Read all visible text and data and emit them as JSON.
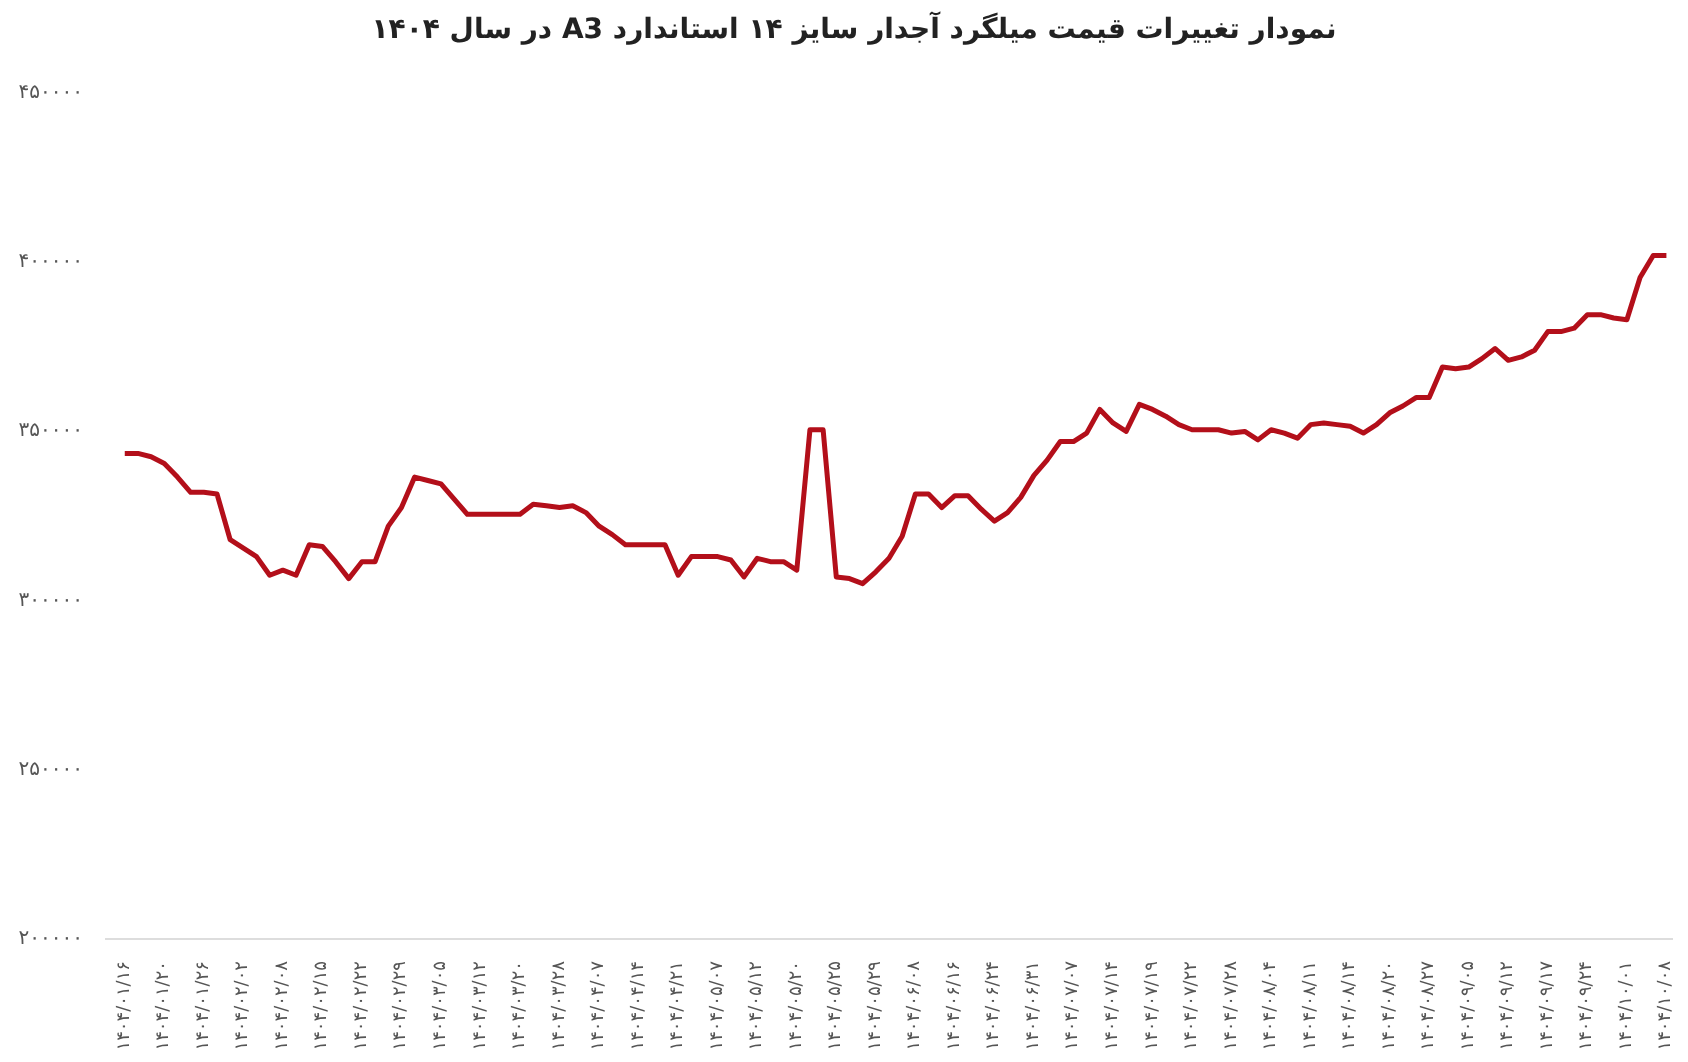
{
  "chart_data": {
    "type": "line",
    "title": "نمودار تغییرات قیمت میلگرد آجدار سایز ۱۴ استاندارد A3 در سال ۱۴۰۴",
    "categories": [
      "۱۴۰۴/۰۱/۱۶",
      null,
      null,
      "۱۴۰۴/۰۱/۲۰",
      null,
      null,
      "۱۴۰۴/۰۱/۲۶",
      null,
      null,
      "۱۴۰۴/۰۲/۰۲",
      null,
      null,
      "۱۴۰۴/۰۲/۰۸",
      null,
      null,
      "۱۴۰۴/۰۲/۱۵",
      null,
      null,
      "۱۴۰۴/۰۲/۲۲",
      null,
      null,
      "۱۴۰۴/۰۲/۲۹",
      null,
      null,
      "۱۴۰۴/۰۳/۰۵",
      null,
      null,
      "۱۴۰۴/۰۳/۱۲",
      null,
      null,
      "۱۴۰۴/۰۳/۲۰",
      null,
      null,
      "۱۴۰۴/۰۳/۲۸",
      null,
      null,
      "۱۴۰۴/۰۴/۰۷",
      null,
      null,
      "۱۴۰۴/۰۴/۱۴",
      null,
      null,
      "۱۴۰۴/۰۴/۲۱",
      null,
      null,
      "۱۴۰۴/۰۵/۰۷",
      null,
      null,
      "۱۴۰۴/۰۵/۱۲",
      null,
      null,
      "۱۴۰۴/۰۵/۲۰",
      null,
      null,
      "۱۴۰۴/۰۵/۲۵",
      null,
      null,
      "۱۴۰۴/۰۵/۲۹",
      null,
      null,
      "۱۴۰۴/۰۶/۰۸",
      null,
      null,
      "۱۴۰۴/۰۶/۱۶",
      null,
      null,
      "۱۴۰۴/۰۶/۲۴",
      null,
      null,
      "۱۴۰۴/۰۶/۳۱",
      null,
      null,
      "۱۴۰۴/۰۷/۰۷",
      null,
      null,
      "۱۴۰۴/۰۷/۱۴",
      null,
      null,
      "۱۴۰۴/۰۷/۱۹",
      null,
      null,
      "۱۴۰۴/۰۷/۲۲",
      null,
      null,
      "۱۴۰۴/۰۷/۲۸",
      null,
      null,
      "۱۴۰۴/۰۸/۰۴",
      null,
      null,
      "۱۴۰۴/۰۸/۱۱",
      null,
      null,
      "۱۴۰۴/۰۸/۱۴",
      null,
      null,
      "۱۴۰۴/۰۸/۲۰",
      null,
      null,
      "۱۴۰۴/۰۸/۲۷",
      null,
      null,
      "۱۴۰۴/۰۹/۰۵",
      null,
      null,
      "۱۴۰۴/۰۹/۱۲",
      null,
      null,
      "۱۴۰۴/۰۹/۱۷",
      null,
      null,
      "۱۴۰۴/۰۹/۲۴",
      null,
      null,
      "۱۴۰۴/۱۰/۰۱",
      null,
      null,
      "۱۴۰۴/۱۰/۰۸"
    ],
    "series": [
      {
        "color": "#b30f1a",
        "values": [
          343500,
          343500,
          342500,
          340500,
          336500,
          332000,
          332000,
          331500,
          318000,
          315500,
          313000,
          307500,
          309000,
          307500,
          316500,
          316000,
          311500,
          306500,
          311500,
          311500,
          322000,
          327500,
          336500,
          335500,
          334500,
          330000,
          325500,
          325500,
          325500,
          325500,
          325500,
          328500,
          328000,
          327500,
          328000,
          326000,
          322000,
          319500,
          316500,
          316500,
          316500,
          316500,
          307500,
          313000,
          313000,
          313000,
          312000,
          307000,
          312500,
          311500,
          311500,
          309000,
          350500,
          350500,
          307000,
          306500,
          305000,
          308500,
          312500,
          319000,
          331500,
          331500,
          327500,
          331000,
          331000,
          327000,
          323500,
          326000,
          330500,
          337000,
          341500,
          347000,
          347000,
          349500,
          356500,
          352500,
          350000,
          358000,
          356500,
          354500,
          352000,
          350500,
          350500,
          350500,
          349500,
          350000,
          347500,
          350500,
          349500,
          348000,
          352000,
          352500,
          352000,
          351500,
          349500,
          352000,
          355500,
          357500,
          360000,
          360000,
          369000,
          368500,
          369000,
          371500,
          374500,
          371000,
          372000,
          374000,
          379500,
          379500,
          380500,
          384500,
          384500,
          383500,
          383000,
          395500,
          402000,
          402000
        ]
      }
    ],
    "ylim": [
      200000,
      450000
    ],
    "yticks": [
      {
        "value": 200000,
        "label": "۲۰۰۰۰۰"
      },
      {
        "value": 250000,
        "label": "۲۵۰۰۰۰"
      },
      {
        "value": 300000,
        "label": "۳۰۰۰۰۰"
      },
      {
        "value": 350000,
        "label": "۳۵۰۰۰۰"
      },
      {
        "value": 400000,
        "label": "۴۰۰۰۰۰"
      },
      {
        "value": 450000,
        "label": "۴۵۰۰۰۰"
      }
    ],
    "marker": "none",
    "line_style": "solid"
  }
}
